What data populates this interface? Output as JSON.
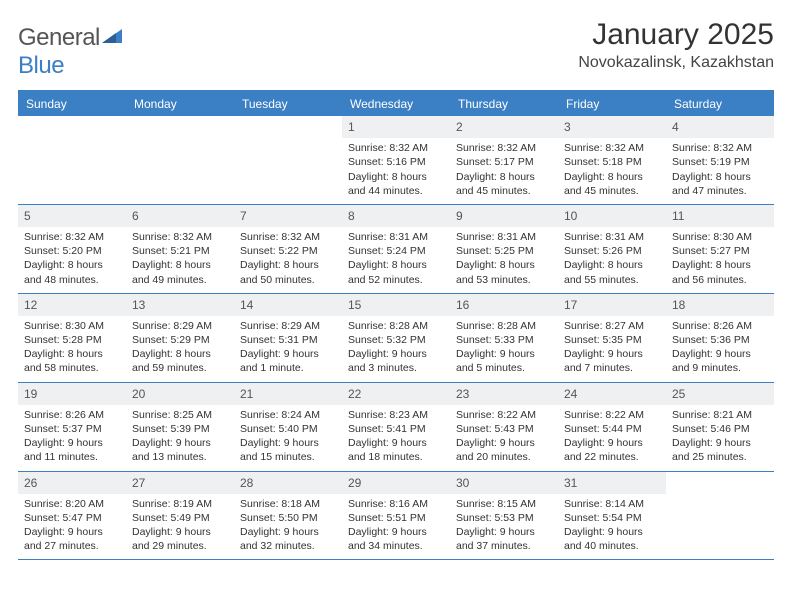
{
  "brand": {
    "part1": "General",
    "part2": "Blue"
  },
  "title": "January 2025",
  "location": "Novokazalinsk, Kazakhstan",
  "colors": {
    "accent": "#3b7fc4",
    "header_text": "#ffffff",
    "daynum_bg": "#eef0f2",
    "body_text": "#333333",
    "page_bg": "#ffffff"
  },
  "day_names": [
    "Sunday",
    "Monday",
    "Tuesday",
    "Wednesday",
    "Thursday",
    "Friday",
    "Saturday"
  ],
  "weeks": [
    [
      null,
      null,
      null,
      {
        "n": "1",
        "sr": "8:32 AM",
        "ss": "5:16 PM",
        "d1": "Daylight: 8 hours",
        "d2": "and 44 minutes."
      },
      {
        "n": "2",
        "sr": "8:32 AM",
        "ss": "5:17 PM",
        "d1": "Daylight: 8 hours",
        "d2": "and 45 minutes."
      },
      {
        "n": "3",
        "sr": "8:32 AM",
        "ss": "5:18 PM",
        "d1": "Daylight: 8 hours",
        "d2": "and 45 minutes."
      },
      {
        "n": "4",
        "sr": "8:32 AM",
        "ss": "5:19 PM",
        "d1": "Daylight: 8 hours",
        "d2": "and 47 minutes."
      }
    ],
    [
      {
        "n": "5",
        "sr": "8:32 AM",
        "ss": "5:20 PM",
        "d1": "Daylight: 8 hours",
        "d2": "and 48 minutes."
      },
      {
        "n": "6",
        "sr": "8:32 AM",
        "ss": "5:21 PM",
        "d1": "Daylight: 8 hours",
        "d2": "and 49 minutes."
      },
      {
        "n": "7",
        "sr": "8:32 AM",
        "ss": "5:22 PM",
        "d1": "Daylight: 8 hours",
        "d2": "and 50 minutes."
      },
      {
        "n": "8",
        "sr": "8:31 AM",
        "ss": "5:24 PM",
        "d1": "Daylight: 8 hours",
        "d2": "and 52 minutes."
      },
      {
        "n": "9",
        "sr": "8:31 AM",
        "ss": "5:25 PM",
        "d1": "Daylight: 8 hours",
        "d2": "and 53 minutes."
      },
      {
        "n": "10",
        "sr": "8:31 AM",
        "ss": "5:26 PM",
        "d1": "Daylight: 8 hours",
        "d2": "and 55 minutes."
      },
      {
        "n": "11",
        "sr": "8:30 AM",
        "ss": "5:27 PM",
        "d1": "Daylight: 8 hours",
        "d2": "and 56 minutes."
      }
    ],
    [
      {
        "n": "12",
        "sr": "8:30 AM",
        "ss": "5:28 PM",
        "d1": "Daylight: 8 hours",
        "d2": "and 58 minutes."
      },
      {
        "n": "13",
        "sr": "8:29 AM",
        "ss": "5:29 PM",
        "d1": "Daylight: 8 hours",
        "d2": "and 59 minutes."
      },
      {
        "n": "14",
        "sr": "8:29 AM",
        "ss": "5:31 PM",
        "d1": "Daylight: 9 hours",
        "d2": "and 1 minute."
      },
      {
        "n": "15",
        "sr": "8:28 AM",
        "ss": "5:32 PM",
        "d1": "Daylight: 9 hours",
        "d2": "and 3 minutes."
      },
      {
        "n": "16",
        "sr": "8:28 AM",
        "ss": "5:33 PM",
        "d1": "Daylight: 9 hours",
        "d2": "and 5 minutes."
      },
      {
        "n": "17",
        "sr": "8:27 AM",
        "ss": "5:35 PM",
        "d1": "Daylight: 9 hours",
        "d2": "and 7 minutes."
      },
      {
        "n": "18",
        "sr": "8:26 AM",
        "ss": "5:36 PM",
        "d1": "Daylight: 9 hours",
        "d2": "and 9 minutes."
      }
    ],
    [
      {
        "n": "19",
        "sr": "8:26 AM",
        "ss": "5:37 PM",
        "d1": "Daylight: 9 hours",
        "d2": "and 11 minutes."
      },
      {
        "n": "20",
        "sr": "8:25 AM",
        "ss": "5:39 PM",
        "d1": "Daylight: 9 hours",
        "d2": "and 13 minutes."
      },
      {
        "n": "21",
        "sr": "8:24 AM",
        "ss": "5:40 PM",
        "d1": "Daylight: 9 hours",
        "d2": "and 15 minutes."
      },
      {
        "n": "22",
        "sr": "8:23 AM",
        "ss": "5:41 PM",
        "d1": "Daylight: 9 hours",
        "d2": "and 18 minutes."
      },
      {
        "n": "23",
        "sr": "8:22 AM",
        "ss": "5:43 PM",
        "d1": "Daylight: 9 hours",
        "d2": "and 20 minutes."
      },
      {
        "n": "24",
        "sr": "8:22 AM",
        "ss": "5:44 PM",
        "d1": "Daylight: 9 hours",
        "d2": "and 22 minutes."
      },
      {
        "n": "25",
        "sr": "8:21 AM",
        "ss": "5:46 PM",
        "d1": "Daylight: 9 hours",
        "d2": "and 25 minutes."
      }
    ],
    [
      {
        "n": "26",
        "sr": "8:20 AM",
        "ss": "5:47 PM",
        "d1": "Daylight: 9 hours",
        "d2": "and 27 minutes."
      },
      {
        "n": "27",
        "sr": "8:19 AM",
        "ss": "5:49 PM",
        "d1": "Daylight: 9 hours",
        "d2": "and 29 minutes."
      },
      {
        "n": "28",
        "sr": "8:18 AM",
        "ss": "5:50 PM",
        "d1": "Daylight: 9 hours",
        "d2": "and 32 minutes."
      },
      {
        "n": "29",
        "sr": "8:16 AM",
        "ss": "5:51 PM",
        "d1": "Daylight: 9 hours",
        "d2": "and 34 minutes."
      },
      {
        "n": "30",
        "sr": "8:15 AM",
        "ss": "5:53 PM",
        "d1": "Daylight: 9 hours",
        "d2": "and 37 minutes."
      },
      {
        "n": "31",
        "sr": "8:14 AM",
        "ss": "5:54 PM",
        "d1": "Daylight: 9 hours",
        "d2": "and 40 minutes."
      },
      null
    ]
  ],
  "labels": {
    "sunrise": "Sunrise: ",
    "sunset": "Sunset: "
  }
}
